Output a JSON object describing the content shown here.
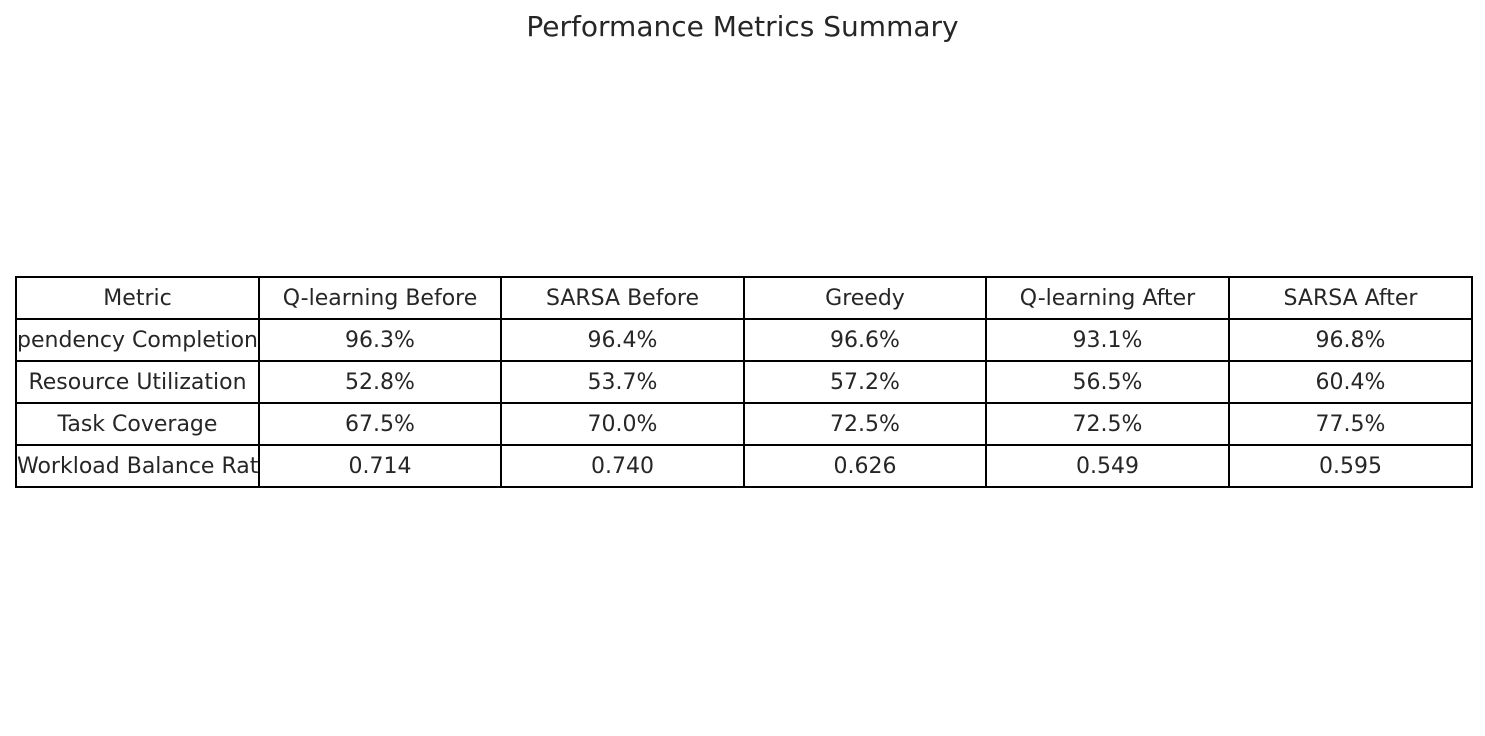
{
  "chart_data": {
    "type": "table",
    "title": "Performance Metrics Summary",
    "columns": [
      "Metric",
      "Q-learning Before",
      "SARSA Before",
      "Greedy",
      "Q-learning After",
      "SARSA After"
    ],
    "rows": [
      {
        "label": "pendency Completion F",
        "values": [
          "96.3%",
          "96.4%",
          "96.6%",
          "93.1%",
          "96.8%"
        ]
      },
      {
        "label": "Resource Utilization",
        "values": [
          "52.8%",
          "53.7%",
          "57.2%",
          "56.5%",
          "60.4%"
        ]
      },
      {
        "label": "Task Coverage",
        "values": [
          "67.5%",
          "70.0%",
          "72.5%",
          "72.5%",
          "77.5%"
        ]
      },
      {
        "label": "Workload Balance Rati",
        "values": [
          "0.714",
          "0.740",
          "0.626",
          "0.549",
          "0.595"
        ]
      }
    ]
  }
}
